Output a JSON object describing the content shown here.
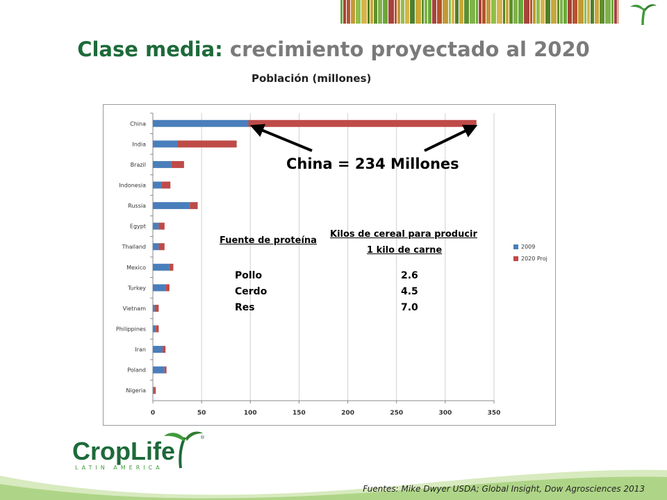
{
  "slide": {
    "title_part1": "Clase media:",
    "title_part2": "crecimiento proyectado al 2020",
    "subtitle": "Población  (millones)",
    "callout": "China = 234 Millones",
    "sources": "Fuentes: Mike Dwyer USDA; Global Insight, Dow Agrosciences 2013",
    "logo": {
      "name": "CropLife",
      "tagline": "LATIN AMERICA",
      "registered": "®"
    },
    "colors": {
      "title_green": "#1d6a3a",
      "title_grey": "#7a7a7a",
      "bar_2009": "#4a7ebb",
      "bar_2020": "#be4b48",
      "brand_green": "#3f9b3a"
    }
  },
  "protein_table": {
    "header_source": "Fuente de proteína",
    "header_kilos_line1": "Kilos de cereal para producir",
    "header_kilos_line2": "1 kilo de carne",
    "rows": [
      {
        "source": "Pollo",
        "kilos": "2.6"
      },
      {
        "source": "Cerdo",
        "kilos": "4.5"
      },
      {
        "source": "Res",
        "kilos": "7.0"
      }
    ]
  },
  "chart_data": {
    "type": "bar",
    "orientation": "horizontal",
    "stacked": true,
    "title": "Población  (millones)",
    "categories": [
      "China",
      "India",
      "Brazil",
      "Indonesia",
      "Russia",
      "Egypt",
      "Thailand",
      "Mexico",
      "Turkey",
      "Vietnam",
      "Philippines",
      "Iran",
      "Poland",
      "Nigeria"
    ],
    "series": [
      {
        "name": "2009",
        "color": "#4a7ebb",
        "values": [
          98,
          25,
          19,
          9,
          38,
          6,
          6,
          17,
          13,
          2,
          3,
          10,
          12,
          1
        ]
      },
      {
        "name": "2020 Proj",
        "color": "#be4b48",
        "values": [
          234,
          61,
          13,
          9,
          8,
          6,
          6,
          4,
          4,
          4,
          3,
          3,
          2,
          2
        ]
      }
    ],
    "xlim": [
      0,
      350
    ],
    "xticks": [
      "0",
      "50",
      "100",
      "150",
      "200",
      "250",
      "300",
      "350"
    ],
    "grid": true,
    "legend": "right"
  }
}
